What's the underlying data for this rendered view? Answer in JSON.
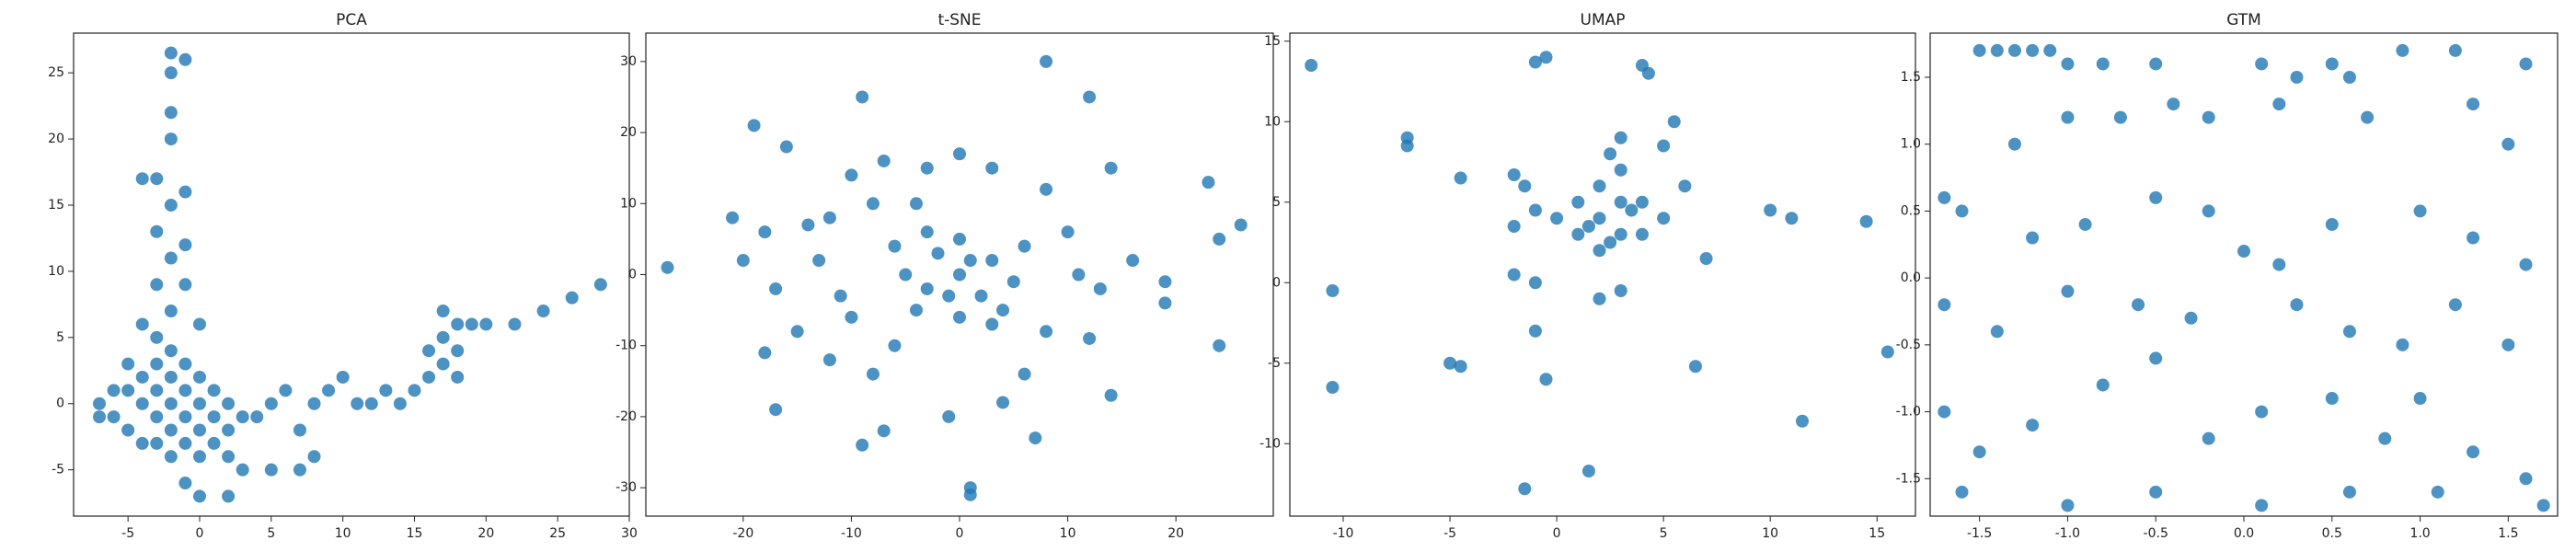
{
  "chart_data": [
    {
      "type": "scatter",
      "title": "PCA",
      "color": "#1f77b4",
      "xlim": [
        -8.8,
        30
      ],
      "ylim": [
        -8.5,
        28
      ],
      "xticks": [
        -5,
        0,
        5,
        10,
        15,
        20,
        25,
        30
      ],
      "yticks": [
        -5,
        0,
        5,
        10,
        15,
        20,
        25
      ],
      "x": [
        -7,
        -6,
        -5,
        -5,
        -4,
        -4,
        -3,
        -3,
        -3,
        -2,
        -2,
        -2,
        -1,
        -1,
        -1,
        0,
        0,
        0,
        1,
        1,
        1,
        2,
        2,
        3,
        -6,
        -4,
        -2,
        0,
        2,
        -1,
        -3,
        3,
        -7,
        -5,
        -4,
        -3,
        -2,
        -3,
        -2,
        -3,
        -1,
        -2,
        -3,
        -1,
        -2,
        -2,
        -2,
        -2,
        -1,
        -4,
        -1,
        -2,
        0,
        4,
        5,
        6,
        7,
        8,
        9,
        10,
        11,
        12,
        13,
        14,
        15,
        16,
        17,
        17,
        18,
        18,
        19,
        17,
        16,
        18,
        20,
        22,
        24,
        26,
        28,
        5,
        7,
        8,
        -1,
        0,
        2
      ],
      "y": [
        0,
        -1,
        1,
        -2,
        0,
        2,
        -1,
        1,
        -3,
        0,
        2,
        -2,
        -1,
        1,
        -3,
        0,
        2,
        -2,
        -1,
        -3,
        1,
        -2,
        -4,
        -1,
        1,
        -3,
        -4,
        -4,
        0,
        3,
        3,
        -5,
        -1,
        3,
        6,
        5,
        7,
        9,
        11,
        13,
        12,
        15,
        17,
        16,
        20,
        22,
        25,
        26.5,
        26,
        17,
        9,
        4,
        6,
        -1,
        0,
        1,
        -2,
        0,
        1,
        2,
        0,
        0,
        1,
        0,
        1,
        2,
        3,
        5,
        4,
        2,
        6,
        7,
        4,
        6,
        6,
        6,
        7,
        8,
        9,
        -5,
        -5,
        -4,
        -6,
        -7,
        -7
      ]
    },
    {
      "type": "scatter",
      "title": "t-SNE",
      "color": "#1f77b4",
      "xlim": [
        -29,
        29
      ],
      "ylim": [
        -34,
        34
      ],
      "xticks": [
        -20,
        -10,
        0,
        10,
        20
      ],
      "yticks": [
        -30,
        -20,
        -10,
        0,
        10,
        20,
        30
      ],
      "x": [
        0,
        -3,
        2,
        -2,
        3,
        -5,
        5,
        0,
        0,
        -4,
        4,
        -6,
        6,
        -1,
        1,
        -3,
        3,
        -8,
        -10,
        -12,
        -14,
        -18,
        -20,
        -17,
        -15,
        -18,
        -12,
        -10,
        -8,
        -9,
        -7,
        -17,
        -21,
        -19,
        -16,
        -9,
        -7,
        -3,
        0,
        3,
        8,
        12,
        8,
        14,
        10,
        13,
        16,
        19,
        24,
        26,
        23,
        24,
        19,
        12,
        14,
        7,
        1,
        1,
        -1,
        4,
        -6,
        8,
        -27,
        -11,
        11,
        -4,
        6,
        -13
      ],
      "y": [
        0,
        -2,
        -3,
        3,
        2,
        0,
        -1,
        -6,
        5,
        -5,
        -5,
        4,
        4,
        -3,
        2,
        6,
        -7,
        10,
        14,
        8,
        7,
        6,
        2,
        -2,
        -8,
        -11,
        -12,
        -6,
        -14,
        -24,
        -22,
        -19,
        8,
        21,
        18,
        25,
        16,
        15,
        17,
        15,
        12,
        25,
        30,
        15,
        6,
        -2,
        2,
        -4,
        5,
        7,
        13,
        -10,
        -1,
        -9,
        -17,
        -23,
        -30,
        -31,
        -20,
        -18,
        -10,
        -8,
        1,
        -3,
        0,
        10,
        -14,
        2
      ]
    },
    {
      "type": "scatter",
      "title": "UMAP",
      "color": "#1f77b4",
      "xlim": [
        -12.5,
        16.8
      ],
      "ylim": [
        -14.5,
        15.5
      ],
      "xticks": [
        -10,
        -5,
        0,
        5,
        10,
        15
      ],
      "yticks": [
        -10,
        -5,
        0,
        5,
        10,
        15
      ],
      "x": [
        1,
        2,
        3,
        4,
        2,
        3,
        1,
        4,
        2,
        3,
        0,
        5,
        1.5,
        3.5,
        2.5,
        2.5,
        3,
        -11.5,
        -7,
        -7,
        -2,
        -1.5,
        -2,
        -1,
        -2,
        -1,
        -1,
        -0.5,
        4,
        4.3,
        -10.5,
        -10.5,
        -5,
        -4.5,
        -1,
        -0.5,
        1.5,
        -1.5,
        2,
        3,
        6.5,
        10,
        11,
        14.5,
        15.5,
        11.5,
        -4.5,
        7,
        6,
        5,
        5.5
      ],
      "y": [
        3,
        4,
        5,
        3,
        2,
        3,
        5,
        5,
        6,
        7,
        4,
        4,
        3.5,
        4.5,
        2.5,
        8,
        9,
        13.5,
        9,
        8.5,
        6.7,
        6,
        3.5,
        4.5,
        0.5,
        0,
        13.7,
        14,
        13.5,
        13,
        -0.5,
        -6.5,
        -5,
        -5.2,
        -3,
        -6,
        -11.7,
        -12.8,
        -1,
        -0.5,
        -5.2,
        4.5,
        4,
        3.8,
        -4.3,
        -8.6,
        6.5,
        1.5,
        6,
        8.5,
        10
      ]
    },
    {
      "type": "scatter",
      "title": "GTM",
      "color": "#1f77b4",
      "xlim": [
        -1.78,
        1.78
      ],
      "ylim": [
        -1.78,
        1.83
      ],
      "xticks": [
        -1.5,
        {
          "value": -1,
          "label": "-1.0"
        },
        -0.5,
        {
          "value": 0,
          "label": "0.0"
        },
        0.5,
        {
          "value": 1,
          "label": "1.0"
        },
        1.5
      ],
      "yticks": [
        -1.5,
        {
          "value": -1,
          "label": "-1.0"
        },
        -0.5,
        {
          "value": 0,
          "label": "0.0"
        },
        0.5,
        {
          "value": 1,
          "label": "1.0"
        },
        1.5
      ],
      "x": [
        -1.5,
        -1.4,
        -1.3,
        -1.2,
        -1.1,
        -1.0,
        -0.8,
        -0.5,
        0.1,
        0.3,
        0.5,
        0.6,
        0.9,
        1.2,
        1.6,
        -1.7,
        -1.6,
        -1.3,
        -1.0,
        -0.7,
        -0.4,
        -0.2,
        0.2,
        0.7,
        1.3,
        1.5,
        -1.2,
        -0.9,
        -0.5,
        -0.2,
        0,
        0.2,
        0.5,
        1.0,
        1.3,
        1.6,
        -1.7,
        -1.4,
        -1.0,
        -0.6,
        -0.3,
        0.3,
        0.6,
        0.9,
        1.2,
        1.5,
        -1.7,
        -1.5,
        -1.2,
        -0.8,
        -0.5,
        -0.2,
        0.1,
        0.5,
        0.8,
        1.0,
        1.3,
        1.6,
        -1.6,
        -1.0,
        -0.5,
        0.1,
        0.6,
        1.1,
        1.7
      ],
      "y": [
        1.7,
        1.7,
        1.7,
        1.7,
        1.7,
        1.6,
        1.6,
        1.6,
        1.6,
        1.5,
        1.6,
        1.5,
        1.7,
        1.7,
        1.6,
        0.6,
        0.5,
        1.0,
        1.2,
        1.2,
        1.3,
        1.2,
        1.3,
        1.2,
        1.3,
        1.0,
        0.3,
        0.4,
        0.6,
        0.5,
        0.2,
        0.1,
        0.4,
        0.5,
        0.3,
        0.1,
        -0.2,
        -0.4,
        -0.1,
        -0.2,
        -0.3,
        -0.2,
        -0.4,
        -0.5,
        -0.2,
        -0.5,
        -1.0,
        -1.3,
        -1.1,
        -0.8,
        -0.6,
        -1.2,
        -1.0,
        -0.9,
        -1.2,
        -0.9,
        -1.3,
        -1.5,
        -1.6,
        -1.7,
        -1.6,
        -1.7,
        -1.6,
        -1.6,
        -1.7
      ]
    }
  ]
}
